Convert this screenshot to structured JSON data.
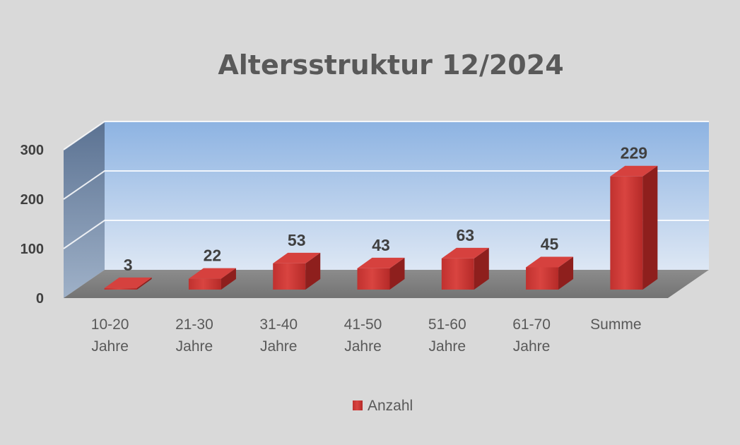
{
  "chart_data": {
    "type": "bar",
    "title": "Altersstruktur 12/2024",
    "categories": [
      [
        "10-20",
        "Jahre"
      ],
      [
        "21-30",
        "Jahre"
      ],
      [
        "31-40",
        "Jahre"
      ],
      [
        "41-50",
        "Jahre"
      ],
      [
        "51-60",
        "Jahre"
      ],
      [
        "61-70",
        "Jahre"
      ],
      [
        "Summe"
      ]
    ],
    "series": [
      {
        "name": "Anzahl",
        "values": [
          3,
          22,
          53,
          43,
          63,
          45,
          229
        ],
        "color": "#c0312f"
      }
    ],
    "y_ticks": [
      0,
      100,
      200,
      300
    ],
    "ylim": [
      0,
      300
    ],
    "grid": true,
    "style": "3d-column",
    "legend_position": "bottom",
    "colors": {
      "back_wall_top": "#8db3e2",
      "back_wall_bottom": "#dbe6f5",
      "side_wall": "#5a7394",
      "floor": "#7f7f7f"
    }
  }
}
